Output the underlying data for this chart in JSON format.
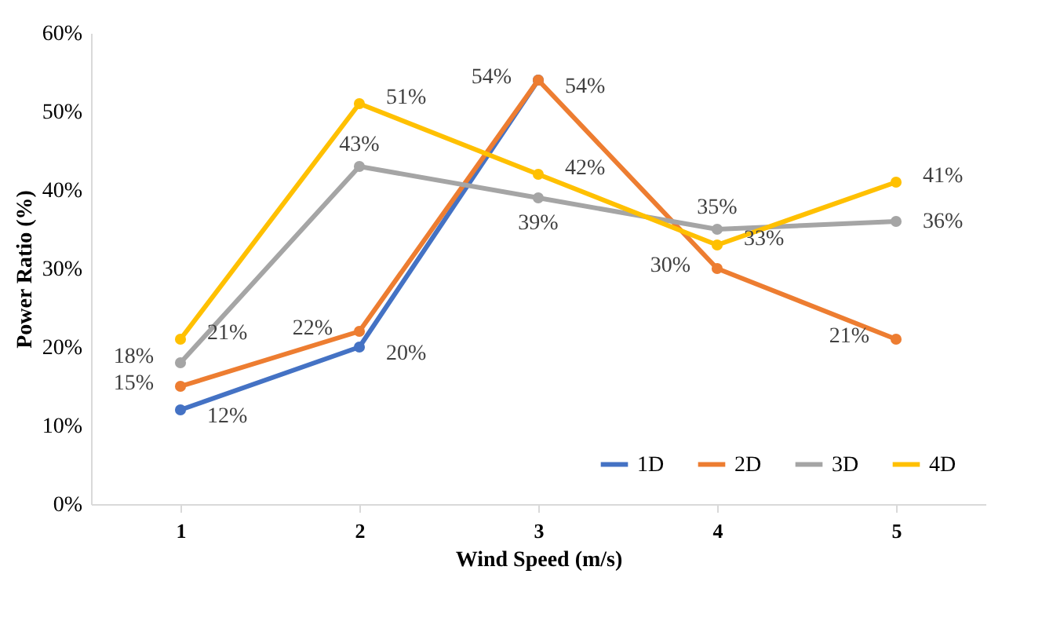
{
  "chart_data": {
    "type": "line",
    "xlabel": "Wind Speed (m/s)",
    "ylabel": "Power Ratio (%)",
    "categories": [
      "1",
      "2",
      "3",
      "4",
      "5"
    ],
    "ylim": [
      0,
      60
    ],
    "yticks": [
      {
        "value": 0,
        "label": "0%"
      },
      {
        "value": 10,
        "label": "10%"
      },
      {
        "value": 20,
        "label": "20%"
      },
      {
        "value": 30,
        "label": "30%"
      },
      {
        "value": 40,
        "label": "40%"
      },
      {
        "value": 50,
        "label": "50%"
      },
      {
        "value": 60,
        "label": "60%"
      }
    ],
    "marker": "circle",
    "legend": "bottom right",
    "grid": false,
    "series": [
      {
        "name": "1D",
        "color": "#4472c4",
        "values": [
          12,
          20,
          54,
          null,
          null
        ],
        "value_labels": [
          "12%",
          "20%",
          "54%",
          null,
          null
        ]
      },
      {
        "name": "2D",
        "color": "#ed7d31",
        "values": [
          15,
          22,
          54,
          30,
          21
        ],
        "value_labels": [
          "15%",
          "22%",
          "54%",
          "30%",
          "21%"
        ]
      },
      {
        "name": "3D",
        "color": "#a5a5a5",
        "values": [
          18,
          43,
          39,
          35,
          36
        ],
        "value_labels": [
          "18%",
          "43%",
          "39%",
          "35%",
          "36%"
        ]
      },
      {
        "name": "4D",
        "color": "#ffc000",
        "values": [
          21,
          51,
          42,
          33,
          41
        ],
        "value_labels": [
          "21%",
          "51%",
          "42%",
          "33%",
          "41%"
        ]
      }
    ]
  }
}
